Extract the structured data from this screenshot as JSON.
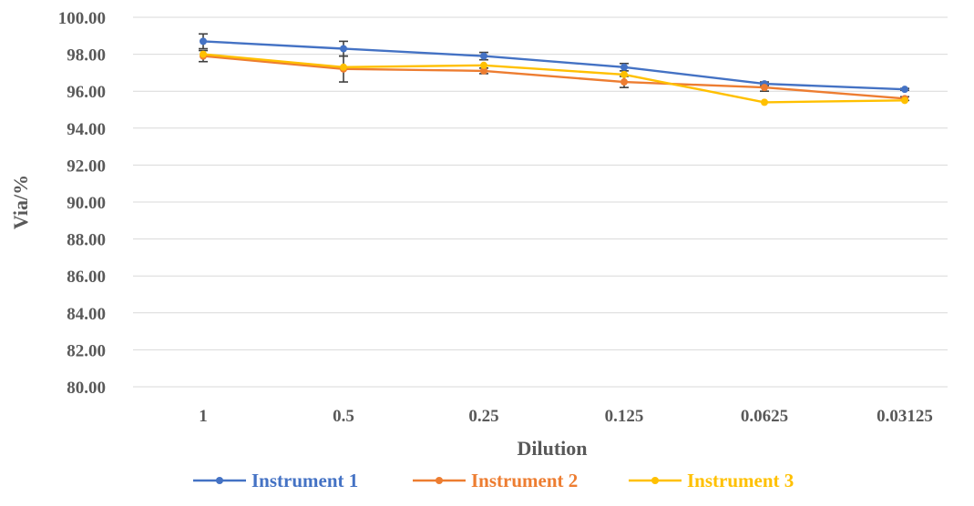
{
  "chart_data": {
    "type": "line",
    "title": "",
    "xlabel": "Dilution",
    "ylabel": "Via/%",
    "ylim": [
      80,
      100
    ],
    "ytick_step": 2,
    "ytick_labels": [
      "80.00",
      "82.00",
      "84.00",
      "86.00",
      "88.00",
      "90.00",
      "92.00",
      "94.00",
      "96.00",
      "98.00",
      "100.00"
    ],
    "categories": [
      "1",
      "0.5",
      "0.25",
      "0.125",
      "0.0625",
      "0.03125"
    ],
    "grid": true,
    "legend": "bottom",
    "series": [
      {
        "name": "Instrument 1",
        "color": "#4472C4",
        "values": [
          98.7,
          98.3,
          97.9,
          97.3,
          96.4,
          96.1
        ],
        "errors": [
          0.4,
          0.4,
          0.2,
          0.2,
          0.1,
          0.05
        ]
      },
      {
        "name": "Instrument 2",
        "color": "#ED7D31",
        "values": [
          97.9,
          97.2,
          97.1,
          96.5,
          96.2,
          95.6
        ],
        "errors": [
          0.3,
          0.7,
          0.15,
          0.3,
          0.2,
          0.1
        ]
      },
      {
        "name": "Instrument 3",
        "color": "#FFC000",
        "values": [
          98.0,
          97.3,
          97.4,
          96.9,
          95.4,
          95.5
        ],
        "errors": [
          0.0,
          0.0,
          0.0,
          0.0,
          0.0,
          0.0
        ]
      }
    ]
  }
}
